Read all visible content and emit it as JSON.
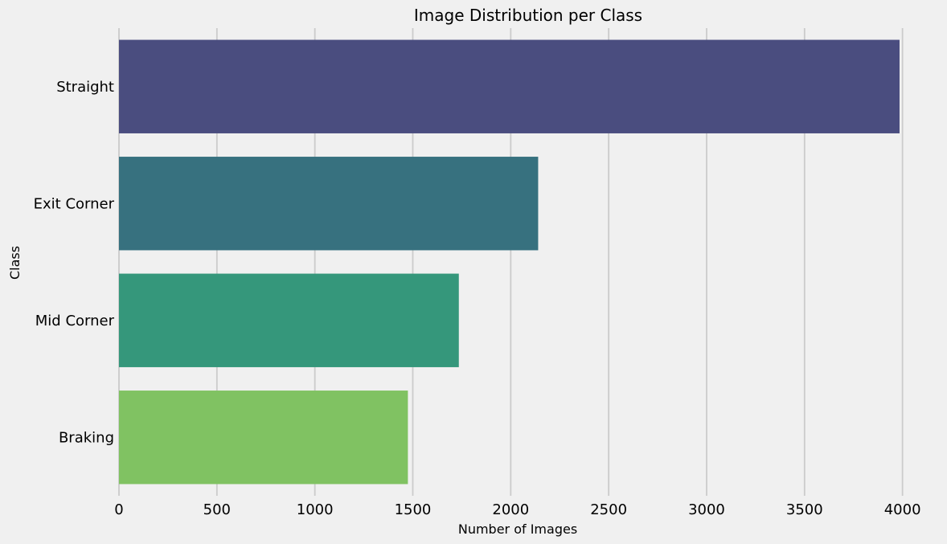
{
  "chart_data": {
    "type": "bar",
    "orientation": "horizontal",
    "title": "Image Distribution per Class",
    "xlabel": "Number of Images",
    "ylabel": "Class",
    "categories": [
      "Straight",
      "Exit Corner",
      "Mid Corner",
      "Braking"
    ],
    "values": [
      3985,
      2140,
      1735,
      1475
    ],
    "colors": [
      "#4a4d7f",
      "#37717f",
      "#35977b",
      "#80c262"
    ],
    "xlim": [
      0,
      4100
    ],
    "xticks": [
      0,
      500,
      1000,
      1500,
      2000,
      2500,
      3000,
      3500,
      4000
    ],
    "xtick_labels": [
      "0",
      "500",
      "1000",
      "1500",
      "2000",
      "2500",
      "3000",
      "3500",
      "4000"
    ],
    "grid": "vertical",
    "background": "#f0f0f0"
  }
}
